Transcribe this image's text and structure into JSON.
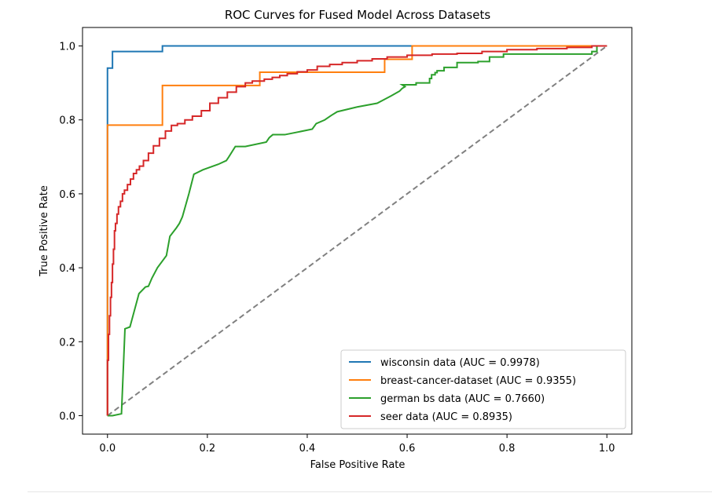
{
  "chart_data": {
    "type": "line",
    "title": "ROC Curves for Fused Model Across Datasets",
    "xlabel": "False Positive Rate",
    "ylabel": "True Positive Rate",
    "xlim": [
      -0.05,
      1.05
    ],
    "ylim": [
      -0.05,
      1.05
    ],
    "xticks": [
      0.0,
      0.2,
      0.4,
      0.6,
      0.8,
      1.0
    ],
    "yticks": [
      0.0,
      0.2,
      0.4,
      0.6,
      0.8,
      1.0
    ],
    "tick_labels": [
      "0.0",
      "0.2",
      "0.4",
      "0.6",
      "0.8",
      "1.0"
    ],
    "grid": false,
    "legend_position": "lower-right",
    "series": [
      {
        "name": "wisconsin data (AUC = 0.9978)",
        "color": "#1f77b4",
        "x": [
          0,
          0,
          0.005,
          0.005,
          0.01,
          0.01,
          0.11,
          0.11,
          0.61,
          0.61,
          1.0
        ],
        "y": [
          0,
          0.94,
          0.94,
          0.94,
          0.94,
          0.985,
          0.985,
          1.0,
          1.0,
          1.0,
          1.0
        ]
      },
      {
        "name": "breast-cancer-dataset (AUC = 0.9355)",
        "color": "#ff7f0e",
        "x": [
          0,
          0,
          0.11,
          0.11,
          0.305,
          0.305,
          0.555,
          0.555,
          0.61,
          0.61,
          0.97,
          0.97,
          1.0
        ],
        "y": [
          0,
          0.786,
          0.786,
          0.893,
          0.893,
          0.929,
          0.929,
          0.964,
          0.964,
          1.0,
          1.0,
          1.0,
          1.0
        ]
      },
      {
        "name": "german bs data (AUC = 0.7660)",
        "color": "#2ca02c",
        "x": [
          0,
          0.01,
          0.01,
          0.028,
          0.028,
          0.035,
          0.035,
          0.045,
          0.045,
          0.048,
          0.048,
          0.063,
          0.063,
          0.076,
          0.076,
          0.082,
          0.082,
          0.089,
          0.089,
          0.1,
          0.1,
          0.118,
          0.118,
          0.125,
          0.125,
          0.138,
          0.138,
          0.144,
          0.144,
          0.15,
          0.15,
          0.163,
          0.163,
          0.173,
          0.173,
          0.191,
          0.191,
          0.222,
          0.222,
          0.238,
          0.238,
          0.243,
          0.243,
          0.256,
          0.256,
          0.27,
          0.27,
          0.276,
          0.276,
          0.318,
          0.318,
          0.324,
          0.324,
          0.331,
          0.331,
          0.335,
          0.335,
          0.345,
          0.345,
          0.355,
          0.355,
          0.41,
          0.41,
          0.418,
          0.418,
          0.435,
          0.435,
          0.448,
          0.448,
          0.46,
          0.46,
          0.5,
          0.5,
          0.54,
          0.54,
          0.568,
          0.568,
          0.585,
          0.585,
          0.59,
          0.59,
          0.596,
          0.596,
          0.59,
          0.61,
          0.61,
          0.618,
          0.618,
          0.645,
          0.645,
          0.649,
          0.649,
          0.656,
          0.656,
          0.66,
          0.66,
          0.674,
          0.674,
          0.7,
          0.7,
          0.742,
          0.742,
          0.765,
          0.765,
          0.793,
          0.793,
          0.97,
          0.97,
          0.98,
          0.98,
          1.0
        ],
        "y": [
          0,
          0,
          0,
          0.005,
          0.005,
          0.235,
          0.235,
          0.24,
          0.24,
          0.255,
          0.255,
          0.33,
          0.33,
          0.348,
          0.348,
          0.35,
          0.35,
          0.372,
          0.372,
          0.4,
          0.4,
          0.433,
          0.433,
          0.485,
          0.485,
          0.508,
          0.508,
          0.52,
          0.52,
          0.538,
          0.538,
          0.6,
          0.6,
          0.653,
          0.653,
          0.665,
          0.665,
          0.68,
          0.68,
          0.69,
          0.69,
          0.7,
          0.7,
          0.728,
          0.728,
          0.728,
          0.728,
          0.728,
          0.728,
          0.74,
          0.74,
          0.752,
          0.752,
          0.76,
          0.76,
          0.76,
          0.76,
          0.76,
          0.76,
          0.76,
          0.76,
          0.775,
          0.775,
          0.79,
          0.79,
          0.8,
          0.8,
          0.812,
          0.812,
          0.822,
          0.822,
          0.835,
          0.835,
          0.845,
          0.845,
          0.865,
          0.865,
          0.878,
          0.878,
          0.885,
          0.885,
          0.89,
          0.89,
          0.895,
          0.895,
          0.895,
          0.895,
          0.9,
          0.9,
          0.912,
          0.912,
          0.922,
          0.922,
          0.928,
          0.928,
          0.933,
          0.933,
          0.942,
          0.942,
          0.955,
          0.955,
          0.958,
          0.958,
          0.97,
          0.97,
          0.978,
          0.978,
          0.985,
          0.985,
          1.0,
          1.0
        ]
      },
      {
        "name": "seer data (AUC = 0.8935)",
        "color": "#d62728",
        "x": [
          0,
          0,
          0.002,
          0.002,
          0.004,
          0.004,
          0.006,
          0.006,
          0.008,
          0.008,
          0.01,
          0.01,
          0.012,
          0.012,
          0.014,
          0.014,
          0.016,
          0.016,
          0.019,
          0.019,
          0.022,
          0.022,
          0.026,
          0.026,
          0.03,
          0.03,
          0.034,
          0.034,
          0.04,
          0.04,
          0.046,
          0.046,
          0.052,
          0.052,
          0.058,
          0.058,
          0.064,
          0.064,
          0.072,
          0.072,
          0.082,
          0.082,
          0.092,
          0.092,
          0.104,
          0.104,
          0.116,
          0.116,
          0.128,
          0.128,
          0.14,
          0.14,
          0.155,
          0.155,
          0.17,
          0.17,
          0.188,
          0.188,
          0.205,
          0.205,
          0.222,
          0.222,
          0.24,
          0.24,
          0.258,
          0.258,
          0.276,
          0.276,
          0.29,
          0.29,
          0.3,
          0.3,
          0.314,
          0.314,
          0.33,
          0.33,
          0.345,
          0.345,
          0.36,
          0.36,
          0.38,
          0.38,
          0.4,
          0.4,
          0.42,
          0.42,
          0.445,
          0.445,
          0.47,
          0.47,
          0.5,
          0.5,
          0.53,
          0.53,
          0.56,
          0.56,
          0.6,
          0.6,
          0.65,
          0.65,
          0.7,
          0.7,
          0.75,
          0.75,
          0.8,
          0.8,
          0.86,
          0.86,
          0.92,
          0.92,
          0.97,
          0.97,
          1.0
        ],
        "y": [
          0,
          0.15,
          0.15,
          0.22,
          0.22,
          0.27,
          0.27,
          0.32,
          0.32,
          0.36,
          0.36,
          0.41,
          0.41,
          0.45,
          0.45,
          0.5,
          0.5,
          0.52,
          0.52,
          0.545,
          0.545,
          0.565,
          0.565,
          0.58,
          0.58,
          0.6,
          0.6,
          0.61,
          0.61,
          0.625,
          0.625,
          0.64,
          0.64,
          0.655,
          0.655,
          0.665,
          0.665,
          0.675,
          0.675,
          0.69,
          0.69,
          0.71,
          0.71,
          0.73,
          0.73,
          0.75,
          0.75,
          0.77,
          0.77,
          0.785,
          0.785,
          0.79,
          0.79,
          0.8,
          0.8,
          0.81,
          0.81,
          0.825,
          0.825,
          0.845,
          0.845,
          0.86,
          0.86,
          0.875,
          0.875,
          0.89,
          0.89,
          0.9,
          0.9,
          0.905,
          0.905,
          0.905,
          0.905,
          0.91,
          0.91,
          0.915,
          0.915,
          0.92,
          0.92,
          0.925,
          0.925,
          0.93,
          0.93,
          0.935,
          0.935,
          0.945,
          0.945,
          0.95,
          0.95,
          0.955,
          0.955,
          0.96,
          0.96,
          0.965,
          0.965,
          0.97,
          0.97,
          0.975,
          0.975,
          0.978,
          0.978,
          0.98,
          0.98,
          0.985,
          0.985,
          0.99,
          0.99,
          0.993,
          0.993,
          0.996,
          0.996,
          1.0,
          1.0
        ]
      }
    ],
    "reference_line": {
      "color": "#808080",
      "style": "dashed",
      "x": [
        0,
        1
      ],
      "y": [
        0,
        1
      ]
    }
  }
}
